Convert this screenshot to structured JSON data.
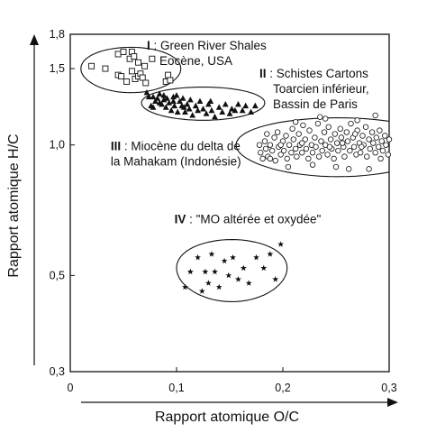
{
  "chart_data": {
    "type": "scatter",
    "title": "",
    "xlabel": "Rapport atomique O/C",
    "ylabel": "Rapport atomique H/C",
    "xlim": [
      0,
      0.3
    ],
    "ylim": [
      0.3,
      1.8
    ],
    "xticks": [
      {
        "value": 0,
        "label": "0"
      },
      {
        "value": 0.1,
        "label": "0,1"
      },
      {
        "value": 0.2,
        "label": "0,2"
      },
      {
        "value": 0.3,
        "label": "0,3"
      }
    ],
    "yticks": [
      {
        "value": 0.3,
        "label": "0,3"
      },
      {
        "value": 0.5,
        "label": "0,5"
      },
      {
        "value": 1.0,
        "label": "1,0"
      },
      {
        "value": 1.5,
        "label": "1,5"
      },
      {
        "value": 1.8,
        "label": "1,8"
      }
    ],
    "grid": false,
    "groups": [
      {
        "roman": "I",
        "label_lines": [
          ": Green River Shales",
          "Eocène, USA"
        ],
        "marker": "open-square",
        "label_anchor": [
          0.072,
          1.66
        ],
        "envelope": {
          "cx": 0.057,
          "cy": 1.5,
          "rx": 0.047,
          "ry": 0.18
        },
        "points": [
          [
            0.02,
            1.52
          ],
          [
            0.033,
            1.5
          ],
          [
            0.045,
            1.62
          ],
          [
            0.045,
            1.45
          ],
          [
            0.048,
            1.44
          ],
          [
            0.05,
            1.64
          ],
          [
            0.053,
            1.4
          ],
          [
            0.056,
            1.58
          ],
          [
            0.058,
            1.64
          ],
          [
            0.058,
            1.48
          ],
          [
            0.06,
            1.6
          ],
          [
            0.061,
            1.42
          ],
          [
            0.064,
            1.55
          ],
          [
            0.064,
            1.44
          ],
          [
            0.066,
            1.46
          ],
          [
            0.068,
            1.43
          ],
          [
            0.07,
            1.52
          ],
          [
            0.071,
            1.39
          ],
          [
            0.077,
            1.58
          ],
          [
            0.09,
            1.4
          ],
          [
            0.092,
            1.45
          ],
          [
            0.094,
            1.41
          ]
        ]
      },
      {
        "roman": "II",
        "label_lines": [
          ": Schistes Cartons",
          "Toarcien inférieur,",
          "Bassin de Paris"
        ],
        "marker": "filled-triangle",
        "label_anchor": [
          0.178,
          1.43
        ],
        "envelope": {
          "cx": 0.125,
          "cy": 1.25,
          "rx": 0.058,
          "ry": 0.11
        },
        "points": [
          [
            0.072,
            1.32
          ],
          [
            0.074,
            1.29
          ],
          [
            0.076,
            1.23
          ],
          [
            0.078,
            1.29
          ],
          [
            0.078,
            1.22
          ],
          [
            0.08,
            1.26
          ],
          [
            0.082,
            1.28
          ],
          [
            0.084,
            1.31
          ],
          [
            0.084,
            1.25
          ],
          [
            0.086,
            1.24
          ],
          [
            0.088,
            1.27
          ],
          [
            0.09,
            1.22
          ],
          [
            0.091,
            1.28
          ],
          [
            0.093,
            1.25
          ],
          [
            0.095,
            1.2
          ],
          [
            0.097,
            1.26
          ],
          [
            0.098,
            1.23
          ],
          [
            0.1,
            1.3
          ],
          [
            0.101,
            1.19
          ],
          [
            0.103,
            1.26
          ],
          [
            0.105,
            1.23
          ],
          [
            0.106,
            1.28
          ],
          [
            0.108,
            1.19
          ],
          [
            0.11,
            1.24
          ],
          [
            0.112,
            1.21
          ],
          [
            0.113,
            1.27
          ],
          [
            0.115,
            1.17
          ],
          [
            0.118,
            1.23
          ],
          [
            0.12,
            1.2
          ],
          [
            0.122,
            1.26
          ],
          [
            0.125,
            1.21
          ],
          [
            0.128,
            1.18
          ],
          [
            0.13,
            1.24
          ],
          [
            0.133,
            1.2
          ],
          [
            0.136,
            1.16
          ],
          [
            0.14,
            1.22
          ],
          [
            0.143,
            1.19
          ],
          [
            0.146,
            1.24
          ],
          [
            0.15,
            1.18
          ],
          [
            0.152,
            1.21
          ],
          [
            0.155,
            1.2
          ],
          [
            0.158,
            1.24
          ],
          [
            0.162,
            1.2
          ],
          [
            0.165,
            1.23
          ],
          [
            0.17,
            1.19
          ],
          [
            0.174,
            1.23
          ],
          [
            0.088,
            1.3
          ],
          [
            0.097,
            1.29
          ],
          [
            0.107,
            1.22
          ],
          [
            0.132,
            1.26
          ]
        ]
      },
      {
        "roman": "III",
        "label_lines": [
          ": Miocène du delta de",
          "la Mahakam (Indonésie)"
        ],
        "marker": "open-circle",
        "label_anchor": [
          0.038,
          0.972
        ],
        "envelope": {
          "cx": 0.252,
          "cy": 1.0,
          "rx": 0.096,
          "ry": 0.155
        },
        "points": [
          [
            0.178,
            1.0
          ],
          [
            0.179,
            0.96
          ],
          [
            0.181,
            0.93
          ],
          [
            0.183,
            1.02
          ],
          [
            0.184,
            0.98
          ],
          [
            0.185,
            1.06
          ],
          [
            0.186,
            0.94
          ],
          [
            0.188,
            1.0
          ],
          [
            0.19,
            0.97
          ],
          [
            0.192,
            1.04
          ],
          [
            0.193,
            0.92
          ],
          [
            0.195,
            1.07
          ],
          [
            0.196,
            0.99
          ],
          [
            0.198,
            0.95
          ],
          [
            0.2,
            1.02
          ],
          [
            0.201,
            0.97
          ],
          [
            0.203,
            1.05
          ],
          [
            0.204,
            0.93
          ],
          [
            0.206,
            1.0
          ],
          [
            0.208,
            0.96
          ],
          [
            0.209,
            1.09
          ],
          [
            0.21,
            1.03
          ],
          [
            0.212,
            0.98
          ],
          [
            0.213,
            0.94
          ],
          [
            0.215,
            1.06
          ],
          [
            0.216,
            1.0
          ],
          [
            0.218,
            0.96
          ],
          [
            0.219,
            1.11
          ],
          [
            0.221,
            1.03
          ],
          [
            0.222,
            0.98
          ],
          [
            0.224,
            0.93
          ],
          [
            0.225,
            1.08
          ],
          [
            0.227,
            1.0
          ],
          [
            0.228,
            0.96
          ],
          [
            0.23,
            1.04
          ],
          [
            0.231,
            0.99
          ],
          [
            0.233,
            1.12
          ],
          [
            0.234,
            0.94
          ],
          [
            0.236,
            1.02
          ],
          [
            0.237,
            0.97
          ],
          [
            0.239,
            1.07
          ],
          [
            0.24,
            1.0
          ],
          [
            0.242,
            0.95
          ],
          [
            0.243,
            1.1
          ],
          [
            0.245,
            1.03
          ],
          [
            0.246,
            0.98
          ],
          [
            0.248,
            0.93
          ],
          [
            0.249,
            1.06
          ],
          [
            0.251,
            1.01
          ],
          [
            0.252,
            0.97
          ],
          [
            0.254,
            1.09
          ],
          [
            0.255,
            1.04
          ],
          [
            0.257,
            0.99
          ],
          [
            0.258,
            0.94
          ],
          [
            0.26,
            1.07
          ],
          [
            0.261,
            1.02
          ],
          [
            0.263,
            0.97
          ],
          [
            0.264,
            1.12
          ],
          [
            0.266,
            1.04
          ],
          [
            0.267,
            0.99
          ],
          [
            0.269,
            0.95
          ],
          [
            0.27,
            1.08
          ],
          [
            0.272,
            1.01
          ],
          [
            0.273,
            0.96
          ],
          [
            0.275,
            1.05
          ],
          [
            0.276,
            1.0
          ],
          [
            0.278,
            1.1
          ],
          [
            0.279,
            0.94
          ],
          [
            0.281,
            1.03
          ],
          [
            0.282,
            0.98
          ],
          [
            0.284,
            1.07
          ],
          [
            0.285,
            1.01
          ],
          [
            0.287,
            0.96
          ],
          [
            0.288,
            1.04
          ],
          [
            0.29,
            0.99
          ],
          [
            0.291,
            1.08
          ],
          [
            0.293,
            1.02
          ],
          [
            0.294,
            0.97
          ],
          [
            0.296,
            1.05
          ],
          [
            0.297,
            1.0
          ],
          [
            0.299,
            0.95
          ],
          [
            0.3,
            1.03
          ],
          [
            0.287,
            1.17
          ],
          [
            0.24,
            1.15
          ],
          [
            0.25,
            0.89
          ],
          [
            0.262,
            0.88
          ],
          [
            0.212,
            1.13
          ],
          [
            0.205,
            0.89
          ],
          [
            0.281,
            0.88
          ],
          [
            0.235,
            1.16
          ],
          [
            0.27,
            1.14
          ],
          [
            0.228,
            0.9
          ],
          [
            0.218,
            1.01
          ],
          [
            0.244,
            0.99
          ],
          [
            0.256,
            1.01
          ],
          [
            0.274,
            0.99
          ],
          [
            0.198,
            1.0
          ],
          [
            0.292,
            0.93
          ],
          [
            0.188,
            0.93
          ],
          [
            0.268,
            1.06
          ]
        ]
      },
      {
        "roman": "IV",
        "label_lines": [
          ": \"MO altérée et oxydée\""
        ],
        "marker": "filled-star",
        "label_anchor": [
          0.098,
          0.66
        ],
        "envelope": {
          "cx": 0.152,
          "cy": 0.52,
          "rx": 0.052,
          "ry": 0.085
        },
        "points": [
          [
            0.108,
            0.47
          ],
          [
            0.113,
            0.51
          ],
          [
            0.12,
            0.55
          ],
          [
            0.124,
            0.46
          ],
          [
            0.127,
            0.51
          ],
          [
            0.13,
            0.48
          ],
          [
            0.133,
            0.56
          ],
          [
            0.136,
            0.51
          ],
          [
            0.14,
            0.47
          ],
          [
            0.145,
            0.54
          ],
          [
            0.149,
            0.5
          ],
          [
            0.153,
            0.55
          ],
          [
            0.158,
            0.49
          ],
          [
            0.163,
            0.52
          ],
          [
            0.168,
            0.48
          ],
          [
            0.175,
            0.55
          ],
          [
            0.182,
            0.52
          ],
          [
            0.188,
            0.56
          ],
          [
            0.193,
            0.49
          ],
          [
            0.198,
            0.59
          ]
        ]
      }
    ]
  }
}
